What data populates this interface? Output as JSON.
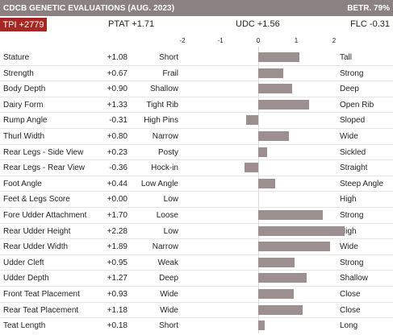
{
  "header": {
    "title": "CDCB GENETIC EVALUATIONS (AUG. 2023)",
    "betr": "BETR. 79%"
  },
  "summary": {
    "tpi": "TPI +2779",
    "ptat": "PTAT +1.71",
    "udc": "UDC +1.56",
    "flc": "FLC -0.31"
  },
  "scale": {
    "ticks": [
      "-2",
      "-1",
      "0",
      "1",
      "2"
    ],
    "values": [
      -2,
      -1,
      0,
      1,
      2
    ]
  },
  "traits": [
    {
      "label": "Stature",
      "value": "+1.08",
      "num": 1.08,
      "low": "Short",
      "high": "Tall"
    },
    {
      "label": "Strength",
      "value": "+0.67",
      "num": 0.67,
      "low": "Frail",
      "high": "Strong"
    },
    {
      "label": "Body Depth",
      "value": "+0.90",
      "num": 0.9,
      "low": "Shallow",
      "high": "Deep"
    },
    {
      "label": "Dairy Form",
      "value": "+1.33",
      "num": 1.33,
      "low": "Tight Rib",
      "high": "Open Rib"
    },
    {
      "label": "Rump Angle",
      "value": "-0.31",
      "num": -0.31,
      "low": "High Pins",
      "high": "Sloped"
    },
    {
      "label": "Thurl Width",
      "value": "+0.80",
      "num": 0.8,
      "low": "Narrow",
      "high": "Wide"
    },
    {
      "label": "Rear Legs - Side View",
      "value": "+0.23",
      "num": 0.23,
      "low": "Posty",
      "high": "Sickled"
    },
    {
      "label": "Rear Legs - Rear View",
      "value": "-0.36",
      "num": -0.36,
      "low": "Hock-in",
      "high": "Straight"
    },
    {
      "label": "Foot Angle",
      "value": "+0.44",
      "num": 0.44,
      "low": "Low Angle",
      "high": "Steep Angle"
    },
    {
      "label": "Feet & Legs Score",
      "value": "+0.00",
      "num": 0.0,
      "low": "Low",
      "high": "High"
    },
    {
      "label": "Fore Udder Attachment",
      "value": "+1.70",
      "num": 1.7,
      "low": "Loose",
      "high": "Strong"
    },
    {
      "label": "Rear Udder Height",
      "value": "+2.28",
      "num": 2.28,
      "low": "Low",
      "high": "High"
    },
    {
      "label": "Rear Udder Width",
      "value": "+1.89",
      "num": 1.89,
      "low": "Narrow",
      "high": "Wide"
    },
    {
      "label": "Udder Cleft",
      "value": "+0.95",
      "num": 0.95,
      "low": "Weak",
      "high": "Strong"
    },
    {
      "label": "Udder Depth",
      "value": "+1.27",
      "num": 1.27,
      "low": "Deep",
      "high": "Shallow"
    },
    {
      "label": "Front Teat Placement",
      "value": "+0.93",
      "num": 0.93,
      "low": "Wide",
      "high": "Close"
    },
    {
      "label": "Rear Teat Placement",
      "value": "+1.18",
      "num": 1.18,
      "low": "Wide",
      "high": "Close"
    },
    {
      "label": "Teat Length",
      "value": "+0.18",
      "num": 0.18,
      "low": "Short",
      "high": "Long"
    }
  ],
  "colors": {
    "header_bg": "#8a8182",
    "tpi_bg": "#a52721",
    "bar": "#9b8f90"
  }
}
